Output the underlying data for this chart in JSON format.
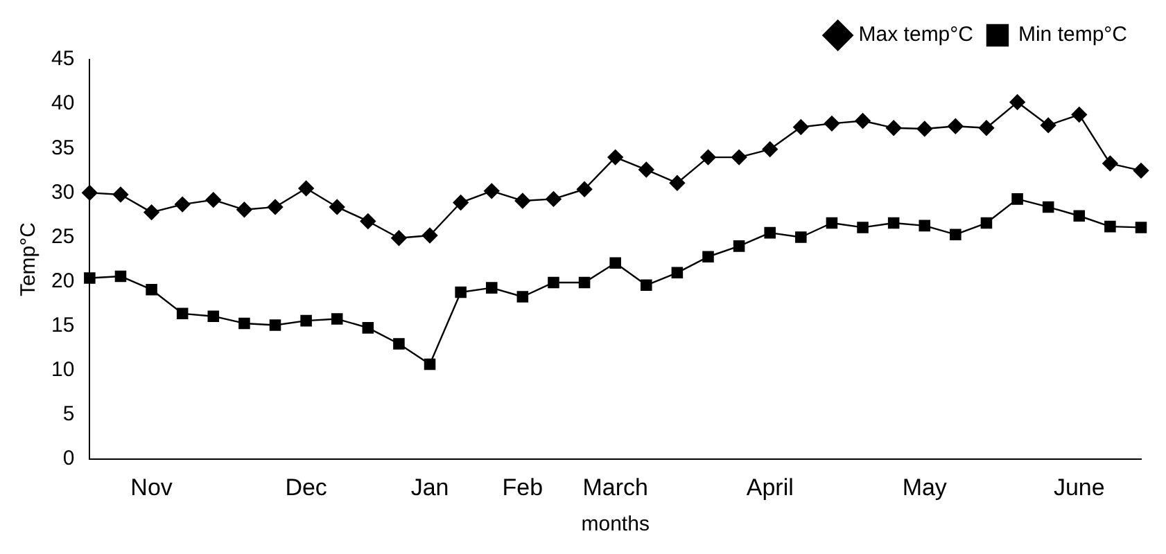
{
  "chart_data": {
    "type": "line",
    "xlabel": "months",
    "ylabel": "Temp°C",
    "categories": [
      null,
      null,
      "Nov",
      null,
      null,
      null,
      null,
      "Dec",
      null,
      null,
      null,
      "Jan",
      null,
      null,
      "Feb",
      null,
      null,
      "March",
      null,
      null,
      null,
      null,
      "April",
      null,
      null,
      null,
      null,
      "May",
      null,
      null,
      null,
      null,
      "June",
      null,
      null
    ],
    "series": [
      {
        "name": "Max temp°C",
        "color": "#000000",
        "marker": "diamond",
        "values": [
          30,
          29.8,
          27.8,
          28.7,
          29.2,
          28.1,
          28.4,
          30.5,
          28.4,
          26.8,
          24.9,
          25.2,
          28.9,
          30.2,
          29.1,
          29.3,
          30.4,
          34,
          32.6,
          31.1,
          34,
          34,
          34.9,
          37.4,
          37.8,
          38.1,
          37.3,
          37.2,
          37.5,
          37.3,
          40.2,
          37.6,
          38.8,
          33.3,
          32.5
        ]
      },
      {
        "name": "Min temp°C",
        "color": "#000000",
        "marker": "square",
        "values": [
          20.4,
          20.6,
          19.1,
          16.4,
          16.1,
          15.3,
          15.1,
          15.6,
          15.8,
          14.8,
          13,
          10.7,
          18.8,
          19.3,
          18.3,
          19.9,
          19.9,
          22.1,
          19.6,
          21,
          22.8,
          24,
          25.5,
          25,
          26.6,
          26.1,
          26.6,
          26.3,
          25.3,
          26.6,
          29.3,
          28.4,
          27.4,
          26.2,
          26.1
        ]
      }
    ],
    "ylim": [
      0,
      45
    ],
    "yticks": [
      0,
      5,
      10,
      15,
      20,
      25,
      30,
      35,
      40,
      45
    ],
    "grid": false,
    "legend": "top right",
    "line_style": "solid"
  }
}
